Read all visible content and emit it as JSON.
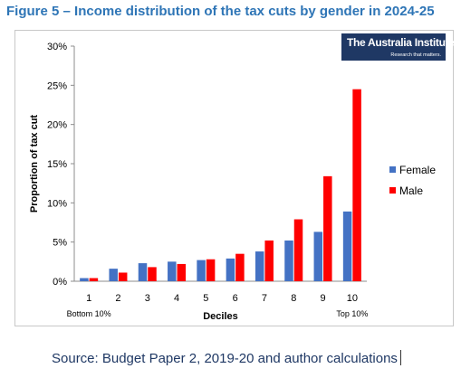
{
  "figure_title": "Figure 5 – Income distribution of the tax cuts by gender in 2024-25",
  "brand": {
    "name": "The Australia Institute",
    "tagline": "Research that matters."
  },
  "source_note": "Source: Budget Paper 2, 2019-20 and author calculations",
  "colors": {
    "female": "#4472c4",
    "male": "#ff0000",
    "title": "#2e75b6",
    "brand_bg": "#1f3864"
  },
  "chart_data": {
    "type": "bar",
    "title": "",
    "xlabel": "Deciles",
    "ylabel": "Proportion of tax cut",
    "categories": [
      "1",
      "2",
      "3",
      "4",
      "5",
      "6",
      "7",
      "8",
      "9",
      "10"
    ],
    "category_sublabels": {
      "first": "Bottom 10%",
      "last": "Top 10%"
    },
    "ylim": [
      0,
      30
    ],
    "yticks": [
      0,
      5,
      10,
      15,
      20,
      25,
      30
    ],
    "ytick_labels": [
      "0%",
      "5%",
      "10%",
      "15%",
      "20%",
      "25%",
      "30%"
    ],
    "grid": false,
    "legend_position": "right",
    "series": [
      {
        "name": "Female",
        "color": "#4472c4",
        "values": [
          0.4,
          1.6,
          2.3,
          2.5,
          2.7,
          2.9,
          3.8,
          5.2,
          6.3,
          8.9
        ]
      },
      {
        "name": "Male",
        "color": "#ff0000",
        "values": [
          0.4,
          1.1,
          1.8,
          2.2,
          2.8,
          3.5,
          5.2,
          7.9,
          13.4,
          24.5
        ]
      }
    ]
  }
}
